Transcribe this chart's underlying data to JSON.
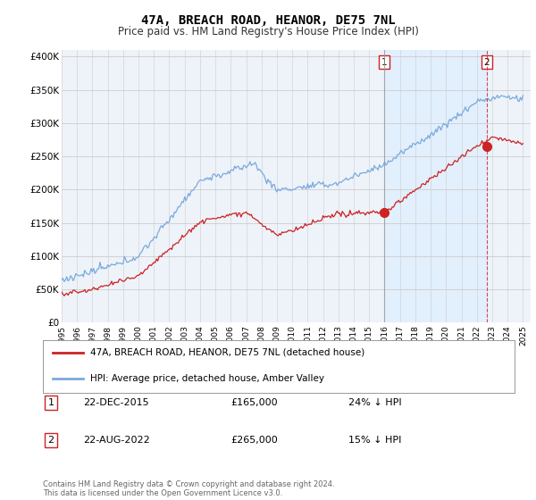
{
  "title": "47A, BREACH ROAD, HEANOR, DE75 7NL",
  "subtitle": "Price paid vs. HM Land Registry's House Price Index (HPI)",
  "ytick_vals": [
    0,
    50000,
    100000,
    150000,
    200000,
    250000,
    300000,
    350000,
    400000
  ],
  "ylim": [
    0,
    410000
  ],
  "xlim_start": 1995.0,
  "xlim_end": 2025.5,
  "sale1_year": 2015.97,
  "sale1_price": 165000,
  "sale1_label": "1",
  "sale1_date": "22-DEC-2015",
  "sale1_pct": "24% ↓ HPI",
  "sale2_year": 2022.64,
  "sale2_price": 265000,
  "sale2_label": "2",
  "sale2_date": "22-AUG-2022",
  "sale2_pct": "15% ↓ HPI",
  "legend_line1": "47A, BREACH ROAD, HEANOR, DE75 7NL (detached house)",
  "legend_line2": "HPI: Average price, detached house, Amber Valley",
  "footer": "Contains HM Land Registry data © Crown copyright and database right 2024.\nThis data is licensed under the Open Government Licence v3.0.",
  "line_red_color": "#cc2222",
  "line_blue_color": "#7aaadd",
  "shade_color": "#ddeeff",
  "vline1_color": "#999999",
  "vline2_color": "#cc2222",
  "grid_color": "#cccccc",
  "background_color": "#ffffff",
  "plot_bg_color": "#eef3fa"
}
